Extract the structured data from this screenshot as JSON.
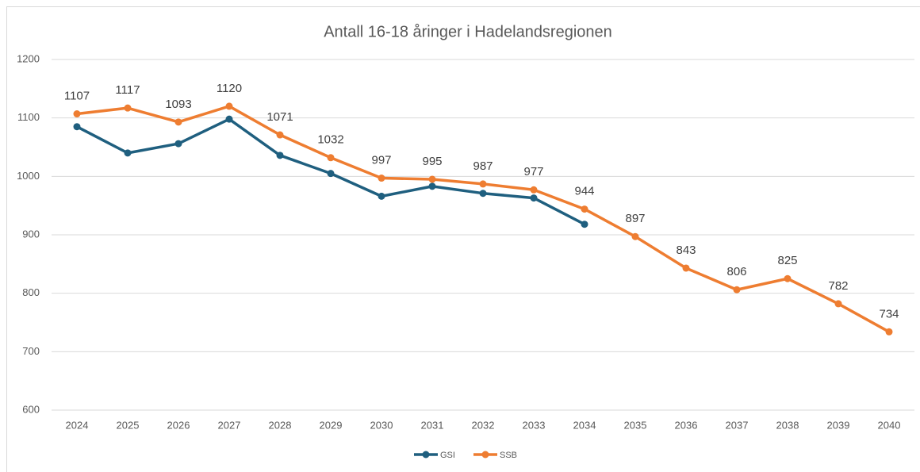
{
  "chart_data": {
    "type": "line",
    "title": "Antall 16-18 åringer i Hadelandsregionen",
    "categories": [
      "2024",
      "2025",
      "2026",
      "2027",
      "2028",
      "2029",
      "2030",
      "2031",
      "2032",
      "2033",
      "2034",
      "2035",
      "2036",
      "2037",
      "2038",
      "2039",
      "2040"
    ],
    "series": [
      {
        "name": "GSI",
        "color": "#1f5f7f",
        "values": [
          1085,
          1040,
          1056,
          1098,
          1036,
          1005,
          966,
          983,
          971,
          963,
          918,
          null,
          null,
          null,
          null,
          null,
          null
        ]
      },
      {
        "name": "SSB",
        "color": "#ee7d31",
        "values": [
          1107,
          1117,
          1093,
          1120,
          1071,
          1032,
          997,
          995,
          987,
          977,
          944,
          897,
          843,
          806,
          825,
          782,
          734
        ],
        "data_labels": true
      }
    ],
    "ylim": [
      600,
      1200
    ],
    "yticks": [
      600,
      700,
      800,
      900,
      1000,
      1100,
      1200
    ],
    "grid": true,
    "legend": "bottom"
  }
}
